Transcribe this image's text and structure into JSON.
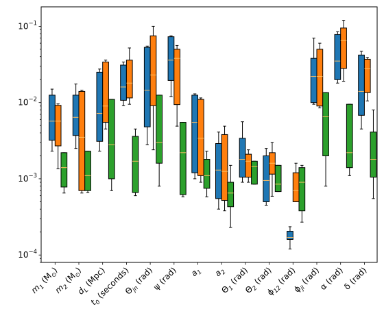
{
  "chart_data": {
    "type": "box",
    "yscale": "log",
    "ylim": [
      8e-05,
      0.18
    ],
    "yticks": [
      {
        "value": 0.0001,
        "base": "10",
        "exp": "−4"
      },
      {
        "value": 0.001,
        "base": "10",
        "exp": "−3"
      },
      {
        "value": 0.01,
        "base": "10",
        "exp": "−2"
      },
      {
        "value": 0.1,
        "base": "10",
        "exp": "−1"
      }
    ],
    "categories": [
      {
        "main": "m",
        "sub": "1",
        "rest": " (M",
        "sun": true,
        "tail": ")"
      },
      {
        "main": "m",
        "sub": "2",
        "rest": " (M",
        "sun": true,
        "tail": ")"
      },
      {
        "main": "d",
        "sub": "L",
        "rest": " (Mpc)",
        "sun": false,
        "tail": ""
      },
      {
        "main": "t",
        "sub": "0",
        "rest": " (seconds)",
        "sun": false,
        "tail": ""
      },
      {
        "main": "Θ",
        "sub": "jn",
        "rest": " (rad)",
        "sun": false,
        "tail": ""
      },
      {
        "main": "ψ",
        "sub": "",
        "rest": " (rad)",
        "sun": false,
        "tail": ""
      },
      {
        "main": "a",
        "sub": "1",
        "rest": "",
        "sun": false,
        "tail": ""
      },
      {
        "main": "a",
        "sub": "2",
        "rest": "",
        "sun": false,
        "tail": ""
      },
      {
        "main": "Θ",
        "sub": "1",
        "rest": " (rad)",
        "sun": false,
        "tail": ""
      },
      {
        "main": "Θ",
        "sub": "2",
        "rest": " (rad)",
        "sun": false,
        "tail": ""
      },
      {
        "main": "ϕ",
        "sub": "12",
        "rest": " (rad)",
        "sun": false,
        "tail": ""
      },
      {
        "main": "ϕ",
        "sub": "jl",
        "rest": " (rad)",
        "sun": false,
        "tail": ""
      },
      {
        "main": "α",
        "sub": "",
        "rest": " (rad)",
        "sun": false,
        "tail": ""
      },
      {
        "main": "δ",
        "sub": "",
        "rest": " (rad)",
        "sun": false,
        "tail": ""
      }
    ],
    "series": [
      {
        "color": "#1f77b4",
        "boxes": [
          {
            "whislo": 0.0023,
            "q1": 0.0032,
            "med": 0.0057,
            "q3": 0.0125,
            "whishi": 0.015
          },
          {
            "whislo": 0.0025,
            "q1": 0.0037,
            "med": 0.0064,
            "q3": 0.0125,
            "whishi": 0.0175
          },
          {
            "whislo": 0.0023,
            "q1": 0.0031,
            "med": 0.0072,
            "q3": 0.025,
            "whishi": 0.0275
          },
          {
            "whislo": 0.0091,
            "q1": 0.0107,
            "med": 0.016,
            "q3": 0.031,
            "whishi": 0.034
          },
          {
            "whislo": 0.0028,
            "q1": 0.0048,
            "med": 0.0145,
            "q3": 0.053,
            "whishi": 0.055
          },
          {
            "whislo": 0.012,
            "q1": 0.0195,
            "med": 0.036,
            "q3": 0.073,
            "whishi": 0.075
          },
          {
            "whislo": 0.001,
            "q1": 0.0012,
            "med": 0.0055,
            "q3": 0.0125,
            "whishi": 0.013
          },
          {
            "whislo": 0.0004,
            "q1": 0.00055,
            "med": 0.0013,
            "q3": 0.0029,
            "whishi": 0.0041
          },
          {
            "whislo": 0.0009,
            "q1": 0.00105,
            "med": 0.0018,
            "q3": 0.0034,
            "whishi": 0.0056
          },
          {
            "whislo": 0.00045,
            "q1": 0.0005,
            "med": 0.00095,
            "q3": 0.002,
            "whishi": 0.0025
          },
          {
            "whislo": 0.00012,
            "q1": 0.00016,
            "med": 0.00017,
            "q3": 0.000205,
            "whishi": 0.000235
          },
          {
            "whislo": 0.0095,
            "q1": 0.01,
            "med": 0.022,
            "q3": 0.038,
            "whishi": 0.07
          },
          {
            "whislo": 0.018,
            "q1": 0.02,
            "med": 0.035,
            "q3": 0.078,
            "whishi": 0.085
          },
          {
            "whislo": 0.0045,
            "q1": 0.0068,
            "med": 0.014,
            "q3": 0.042,
            "whishi": 0.047
          }
        ]
      },
      {
        "color": "#ff7f0e",
        "boxes": [
          {
            "whislo": 0.00135,
            "q1": 0.0027,
            "med": 0.0057,
            "q3": 0.0092,
            "whishi": 0.0096
          },
          {
            "whislo": 0.00065,
            "q1": 0.0007,
            "med": 0.0035,
            "q3": 0.014,
            "whishi": 0.0145
          },
          {
            "whislo": 0.0045,
            "q1": 0.0055,
            "med": 0.009,
            "q3": 0.034,
            "whishi": 0.036
          },
          {
            "whislo": 0.0095,
            "q1": 0.0115,
            "med": 0.018,
            "q3": 0.036,
            "whishi": 0.052
          },
          {
            "whislo": 0.0024,
            "q1": 0.0091,
            "med": 0.023,
            "q3": 0.075,
            "whishi": 0.1
          },
          {
            "whislo": 0.0049,
            "q1": 0.0094,
            "med": 0.038,
            "q3": 0.05,
            "whishi": 0.056
          },
          {
            "whislo": 0.0009,
            "q1": 0.0011,
            "med": 0.0034,
            "q3": 0.011,
            "whishi": 0.0115
          },
          {
            "whislo": 0.00038,
            "q1": 0.00052,
            "med": 0.00125,
            "q3": 0.0038,
            "whishi": 0.0049
          },
          {
            "whislo": 0.0009,
            "q1": 0.00105,
            "med": 0.0017,
            "q3": 0.0021,
            "whishi": 0.0024
          },
          {
            "whislo": 0.00059,
            "q1": 0.00115,
            "med": 0.0016,
            "q3": 0.0022,
            "whishi": 0.003
          },
          {
            "whislo": 0.0005,
            "q1": 0.0005,
            "med": 0.0007,
            "q3": 0.0012,
            "whishi": 0.0016
          },
          {
            "whislo": 0.0085,
            "q1": 0.009,
            "med": 0.022,
            "q3": 0.05,
            "whishi": 0.06
          },
          {
            "whislo": 0.019,
            "q1": 0.028,
            "med": 0.065,
            "q3": 0.095,
            "whishi": 0.12
          },
          {
            "whislo": 0.0105,
            "q1": 0.0135,
            "med": 0.028,
            "q3": 0.037,
            "whishi": 0.039
          }
        ]
      },
      {
        "color": "#2ca02c",
        "boxes": [
          {
            "whislo": 0.00065,
            "q1": 0.00078,
            "med": 0.0014,
            "q3": 0.0022,
            "whishi": 0.0022
          },
          {
            "whislo": 0.00066,
            "q1": 0.0007,
            "med": 0.0011,
            "q3": 0.0023,
            "whishi": 0.0023
          },
          {
            "whislo": 0.0007,
            "q1": 0.001,
            "med": 0.0028,
            "q3": 0.011,
            "whishi": 0.011
          },
          {
            "whislo": 0.0006,
            "q1": 0.00066,
            "med": 0.0017,
            "q3": 0.0036,
            "whishi": 0.0045
          },
          {
            "whislo": 0.0008,
            "q1": 0.0016,
            "med": 0.003,
            "q3": 0.0125,
            "whishi": 0.0125
          },
          {
            "whislo": 0.00058,
            "q1": 0.00062,
            "med": 0.0022,
            "q3": 0.0055,
            "whishi": 0.0055
          },
          {
            "whislo": 0.00058,
            "q1": 0.00075,
            "med": 0.0011,
            "q3": 0.0018,
            "whishi": 0.0023
          },
          {
            "whislo": 0.00023,
            "q1": 0.00043,
            "med": 0.00065,
            "q3": 0.0009,
            "whishi": 0.0015
          },
          {
            "whislo": 0.00085,
            "q1": 0.00085,
            "med": 0.00145,
            "q3": 0.0017,
            "whishi": 0.0017
          },
          {
            "whislo": 0.00068,
            "q1": 0.00068,
            "med": 0.00085,
            "q3": 0.0015,
            "whishi": 0.0015
          },
          {
            "whislo": 0.00027,
            "q1": 0.00038,
            "med": 0.0009,
            "q3": 0.0014,
            "whishi": 0.0015
          },
          {
            "whislo": 0.0008,
            "q1": 0.002,
            "med": 0.0065,
            "q3": 0.0135,
            "whishi": 0.0135
          },
          {
            "whislo": 0.0011,
            "q1": 0.0014,
            "med": 0.0022,
            "q3": 0.0095,
            "whishi": 0.0095
          },
          {
            "whislo": 0.00055,
            "q1": 0.00105,
            "med": 0.0018,
            "q3": 0.0041,
            "whishi": 0.008
          }
        ]
      }
    ],
    "median_color": "#ffbf60",
    "grid": false,
    "legend": "none"
  }
}
